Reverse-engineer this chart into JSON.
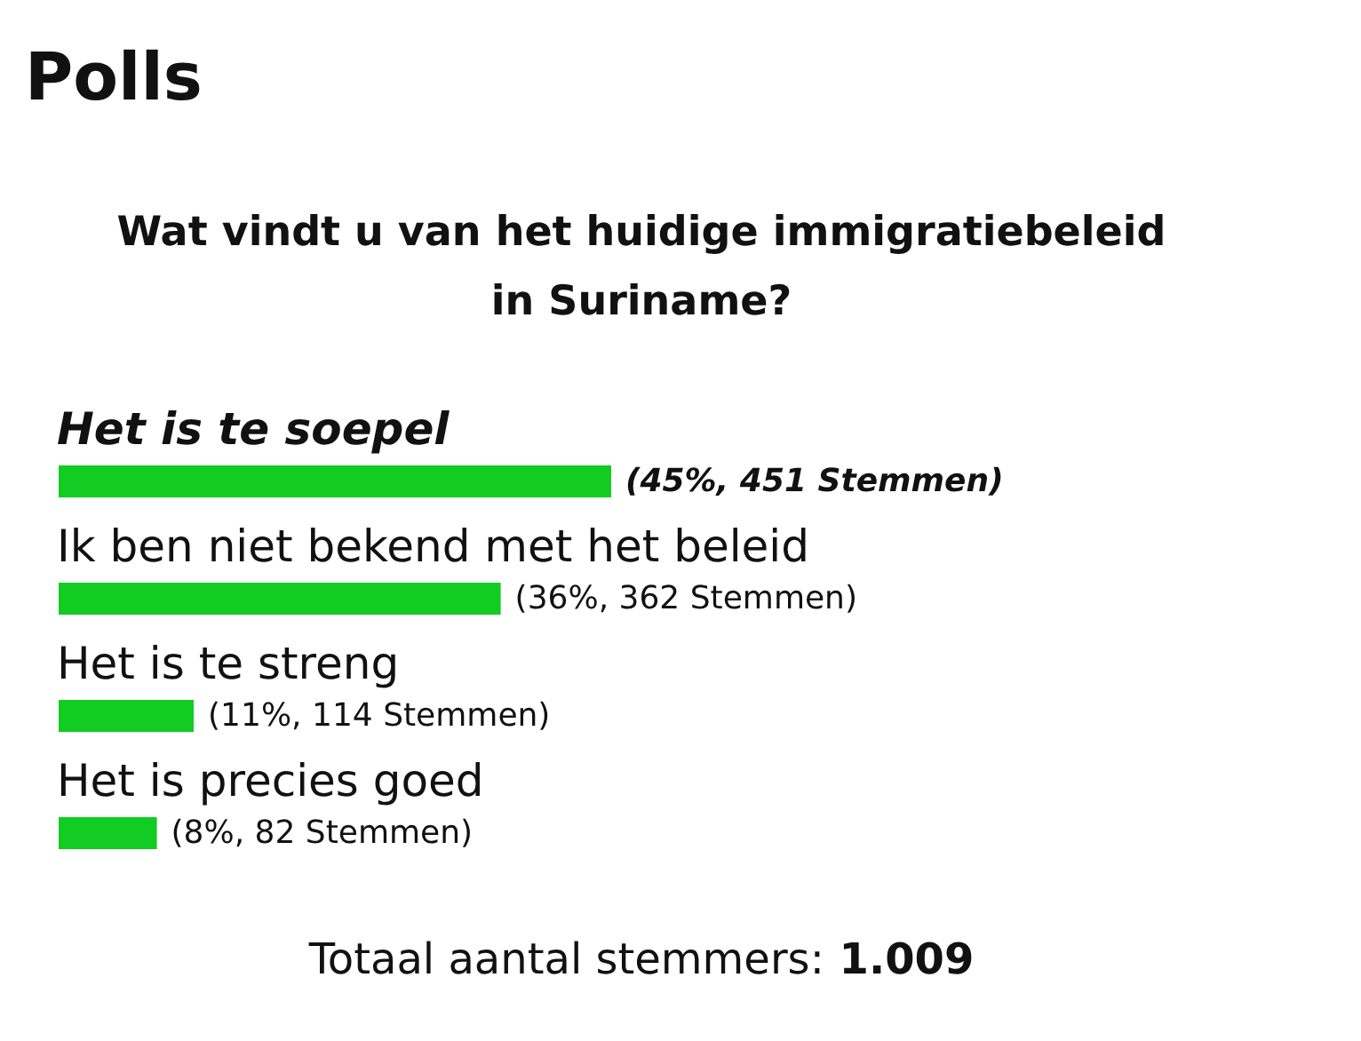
{
  "chart_data": {
    "type": "bar",
    "orientation": "horizontal",
    "title": "Polls",
    "subtitle": "Wat vindt u van het huidige immigratiebeleid in Suriname?",
    "categories": [
      "Het is te soepel",
      "Ik ben niet bekend met het beleid",
      "Het is te streng",
      "Het is precies goed"
    ],
    "values": [
      45,
      36,
      11,
      8
    ],
    "value_labels": [
      "(45%, 451 Stemmen)",
      "(36%, 362 Stemmen)",
      "(11%, 114 Stemmen)",
      "(8%, 82 Stemmen)"
    ],
    "color": "#12cc23",
    "annotations": [
      "Totaal aantal stemmers: 1.009"
    ]
  }
}
